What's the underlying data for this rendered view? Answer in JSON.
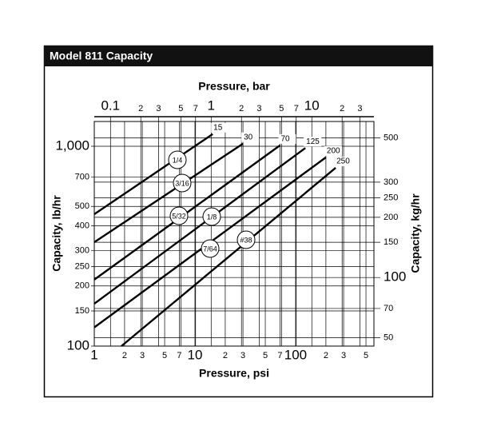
{
  "header": {
    "title": "Model 811 Capacity"
  },
  "chart_data": {
    "type": "line",
    "xlabel": "Pressure, psi",
    "x2label": "Pressure, bar",
    "ylabel": "Capacity, lb/hr",
    "y2label": "Capacity, kg/hr",
    "xscale": "log",
    "yscale": "log",
    "grid": true,
    "xlim": [
      1,
      600
    ],
    "x2lim": [
      0.069,
      41.4
    ],
    "ylim": [
      100,
      1330
    ],
    "y2lim": [
      45.4,
      603
    ],
    "xticks": [
      1,
      {
        "value": 2,
        "label": "2"
      },
      {
        "value": 3,
        "label": "3"
      },
      {
        "value": 5,
        "label": "5"
      },
      {
        "value": 7,
        "label": "7"
      },
      10,
      {
        "value": 20,
        "label": "2"
      },
      {
        "value": 30,
        "label": "3"
      },
      {
        "value": 50,
        "label": "5"
      },
      {
        "value": 70,
        "label": "7"
      },
      100,
      {
        "value": 200,
        "label": "2"
      },
      {
        "value": 300,
        "label": "3"
      },
      {
        "value": 500,
        "label": "5"
      }
    ],
    "x2ticks": [
      0.1,
      {
        "value": 0.2,
        "label": "2"
      },
      {
        "value": 0.3,
        "label": "3"
      },
      {
        "value": 0.5,
        "label": "5"
      },
      {
        "value": 0.7,
        "label": "7"
      },
      1,
      {
        "value": 2,
        "label": "2"
      },
      {
        "value": 3,
        "label": "3"
      },
      {
        "value": 5,
        "label": "5"
      },
      {
        "value": 7,
        "label": "7"
      },
      10,
      {
        "value": 20,
        "label": "2"
      },
      {
        "value": 30,
        "label": "3"
      }
    ],
    "yticks": [
      100,
      150,
      200,
      250,
      300,
      400,
      500,
      700,
      {
        "value": 1000,
        "label": "1,000"
      }
    ],
    "y2ticks": [
      50,
      70,
      100,
      150,
      200,
      250,
      300,
      500
    ],
    "series": [
      {
        "name": "1/4",
        "color": "#000000",
        "x": [
          1,
          15
        ],
        "values": [
          457,
          1150
        ]
      },
      {
        "name": "3/16",
        "color": "#000000",
        "x": [
          1,
          30
        ],
        "values": [
          331,
          1030
        ]
      },
      {
        "name": "5/32",
        "color": "#000000",
        "x": [
          1,
          70
        ],
        "values": [
          215,
          1010
        ]
      },
      {
        "name": "1/8",
        "color": "#000000",
        "x": [
          1,
          125
        ],
        "values": [
          163,
          980
        ]
      },
      {
        "name": "7/64",
        "color": "#000000",
        "x": [
          1,
          200
        ],
        "values": [
          124,
          880
        ]
      },
      {
        "name": "#38",
        "color": "#000000",
        "x": [
          1.86,
          250
        ],
        "values": [
          100,
          780
        ]
      }
    ]
  }
}
